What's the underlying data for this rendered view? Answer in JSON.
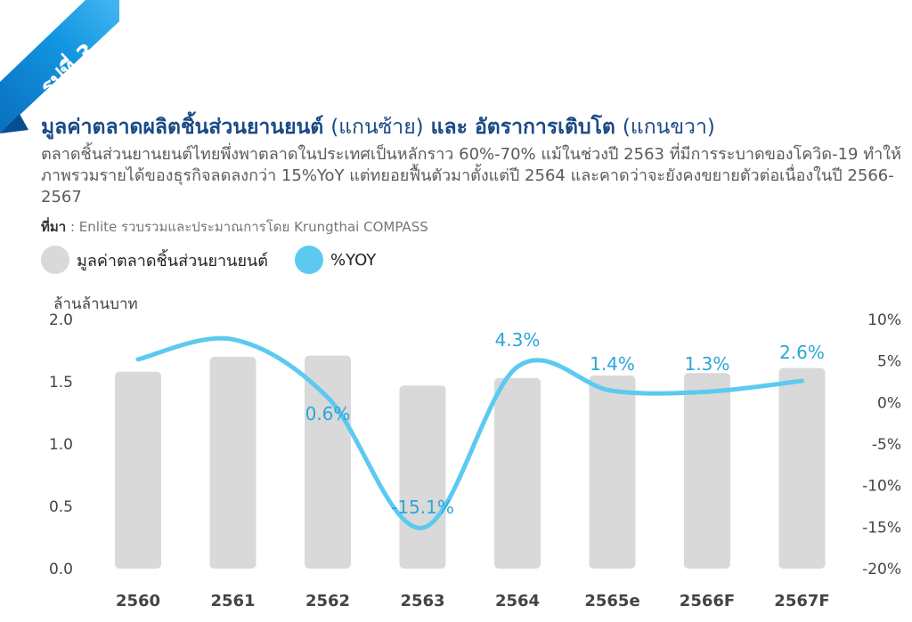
{
  "badge": {
    "text": "รูปที่ 3"
  },
  "title": {
    "main": "มูลค่าตลาดผลิตชิ้นส่วนยานยนต์",
    "left_note": "(แกนซ้าย)",
    "connector": "และ",
    "second": "อัตราการเติบโต",
    "right_note": "(แกนขวา)"
  },
  "description": "ตลาดชิ้นส่วนยานยนต์ไทยพึ่งพาตลาดในประเทศเป็นหลักราว 60%-70% แม้ในช่วงปี 2563 ที่มีการระบาดของโควิด-19 ทำให้ภาพรวมรายได้ของธุรกิจลดลงกว่า 15%YoY แต่ทยอยฟื้นตัวมาตั้งแต่ปี 2564 และคาดว่าจะยังคงขยายตัวต่อเนื่องในปี 2566-2567",
  "source": {
    "label": "ที่มา",
    "text": ": Enlite รวบรวมและประมาณการโดย Krungthai COMPASS"
  },
  "colors": {
    "bar": "#d9d9d9",
    "line": "#5ccaf0",
    "label": "#2ba6d9",
    "title": "#1a4a86",
    "ribbon": "#0e8ddb"
  },
  "chart_data": {
    "type": "bar",
    "categories": [
      "2560",
      "2561",
      "2562",
      "2563",
      "2564",
      "2565e",
      "2566F",
      "2567F"
    ],
    "y_unit_label": "ล้านล้านบาท",
    "ylim": [
      0,
      2.0
    ],
    "yticks": [
      "0.0",
      "0.5",
      "1.0",
      "1.5",
      "2.0"
    ],
    "y2lim": [
      -20,
      10
    ],
    "y2ticks": [
      "-20%",
      "-15%",
      "-10%",
      "-5%",
      "0%",
      "5%",
      "10%"
    ],
    "grid": false,
    "legend_position": "top-left",
    "series": [
      {
        "name": "มูลค่าตลาดชิ้นส่วนยานยนต์",
        "type": "bar",
        "axis": "left",
        "values": [
          1.58,
          1.7,
          1.71,
          1.47,
          1.53,
          1.55,
          1.57,
          1.61
        ]
      },
      {
        "name": "%YOY",
        "type": "line",
        "axis": "right",
        "smooth": true,
        "values": [
          5.2,
          7.6,
          0.6,
          -15.1,
          4.3,
          1.4,
          1.3,
          2.6
        ],
        "data_labels": [
          "",
          "",
          "0.6%",
          "-15.1%",
          "4.3%",
          "1.4%",
          "1.3%",
          "2.6%"
        ]
      }
    ]
  }
}
